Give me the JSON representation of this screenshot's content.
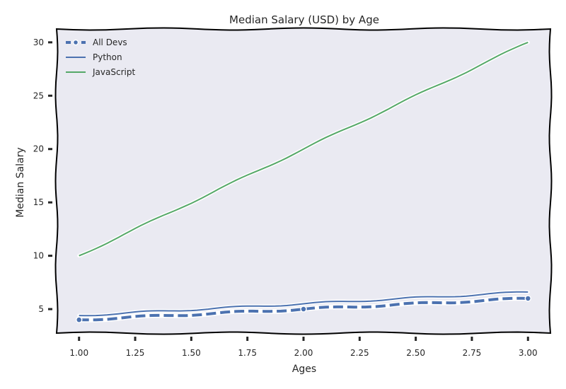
{
  "chart_data": {
    "type": "line",
    "title": "Median Salary (USD) by Age",
    "xlabel": "Ages",
    "ylabel": "Median Salary",
    "x": [
      1.0,
      2.0,
      3.0
    ],
    "xlim": [
      0.9,
      3.1
    ],
    "ylim": [
      2.75,
      31.25
    ],
    "xticks": [
      "1.00",
      "1.25",
      "1.50",
      "1.75",
      "2.00",
      "2.25",
      "2.50",
      "2.75",
      "3.00"
    ],
    "xtick_values": [
      1.0,
      1.25,
      1.5,
      1.75,
      2.0,
      2.25,
      2.5,
      2.75,
      3.0
    ],
    "yticks": [
      "5",
      "10",
      "15",
      "20",
      "25",
      "30"
    ],
    "ytick_values": [
      5,
      10,
      15,
      20,
      25,
      30
    ],
    "grid": false,
    "style": "xkcd",
    "legend_position": "top-left",
    "series": [
      {
        "name": "All Devs",
        "values": [
          4,
          5,
          6
        ],
        "color": "#4c72b0",
        "line_style": "dashed",
        "marker": "circle"
      },
      {
        "name": "Python",
        "values": [
          4.4,
          5.5,
          6.6
        ],
        "color": "#4c72b0",
        "line_style": "solid",
        "marker": "none"
      },
      {
        "name": "JavaScript",
        "values": [
          10,
          20,
          30
        ],
        "color": "#55a868",
        "line_style": "solid",
        "marker": "none"
      }
    ]
  }
}
